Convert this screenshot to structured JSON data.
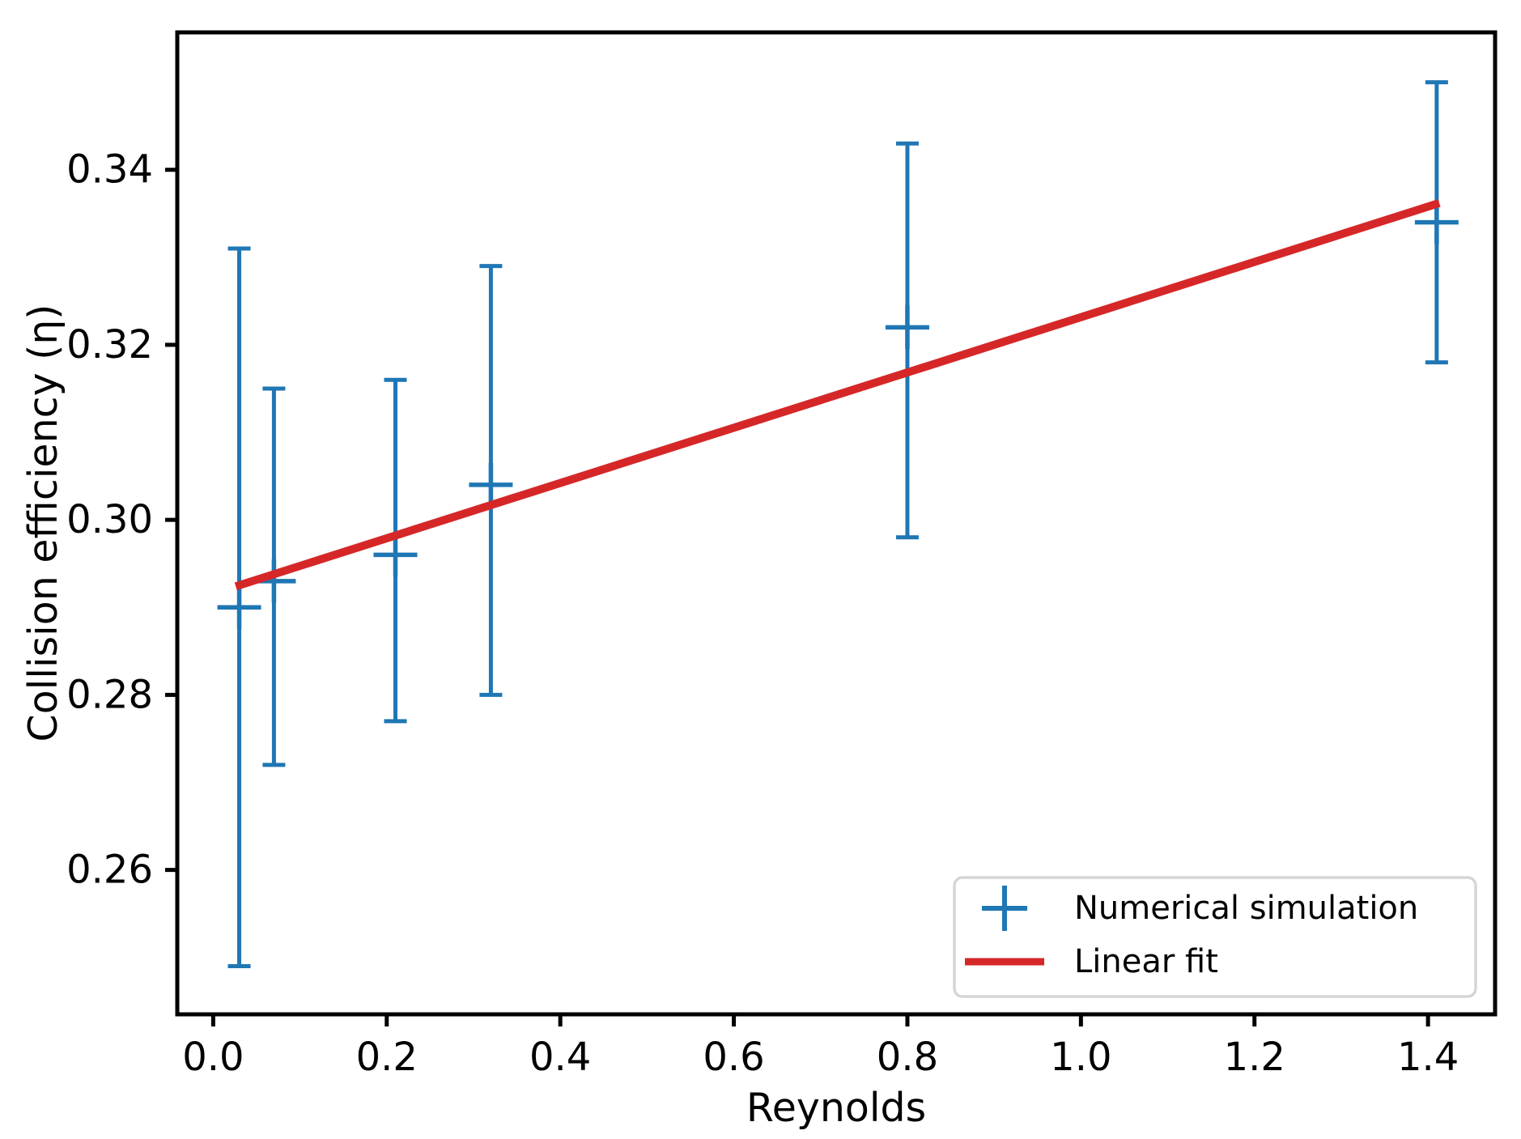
{
  "chart_data": {
    "type": "scatter",
    "title": "",
    "xlabel": "Reynolds",
    "ylabel": "Collision efficiency (η)",
    "xlim": [
      -0.0414,
      1.4773
    ],
    "ylim": [
      0.2435,
      0.3557
    ],
    "grid": false,
    "x_ticks": [
      0.0,
      0.2,
      0.4,
      0.6,
      0.8,
      1.0,
      1.2,
      1.4
    ],
    "x_tick_labels": [
      "0.0",
      "0.2",
      "0.4",
      "0.6",
      "0.8",
      "1.0",
      "1.2",
      "1.4"
    ],
    "y_ticks": [
      0.26,
      0.28,
      0.3,
      0.32,
      0.34
    ],
    "y_tick_labels": [
      "0.26",
      "0.28",
      "0.30",
      "0.32",
      "0.34"
    ],
    "colors": {
      "simulation": "#1f77b4",
      "fit": "#d62728"
    },
    "series": [
      {
        "name": "Numerical simulation",
        "type": "errorbar",
        "color": "#1f77b4",
        "marker": "plus",
        "points": [
          {
            "x": 0.03,
            "y": 0.29,
            "y_lo": 0.249,
            "y_hi": 0.331
          },
          {
            "x": 0.07,
            "y": 0.293,
            "y_lo": 0.272,
            "y_hi": 0.315
          },
          {
            "x": 0.21,
            "y": 0.296,
            "y_lo": 0.277,
            "y_hi": 0.316
          },
          {
            "x": 0.32,
            "y": 0.304,
            "y_lo": 0.28,
            "y_hi": 0.329
          },
          {
            "x": 0.8,
            "y": 0.322,
            "y_lo": 0.298,
            "y_hi": 0.343
          },
          {
            "x": 1.41,
            "y": 0.334,
            "y_lo": 0.318,
            "y_hi": 0.35
          }
        ]
      },
      {
        "name": "Linear fit",
        "type": "line",
        "color": "#d62728",
        "x1": 0.026,
        "y1": 0.2924,
        "x2": 1.413,
        "y2": 0.3362
      }
    ],
    "legend": {
      "position": "lower right",
      "entries": [
        {
          "label": "Numerical simulation",
          "marker": "plus",
          "color": "#1f77b4"
        },
        {
          "label": "Linear fit",
          "marker": "line",
          "color": "#d62728"
        }
      ]
    }
  }
}
